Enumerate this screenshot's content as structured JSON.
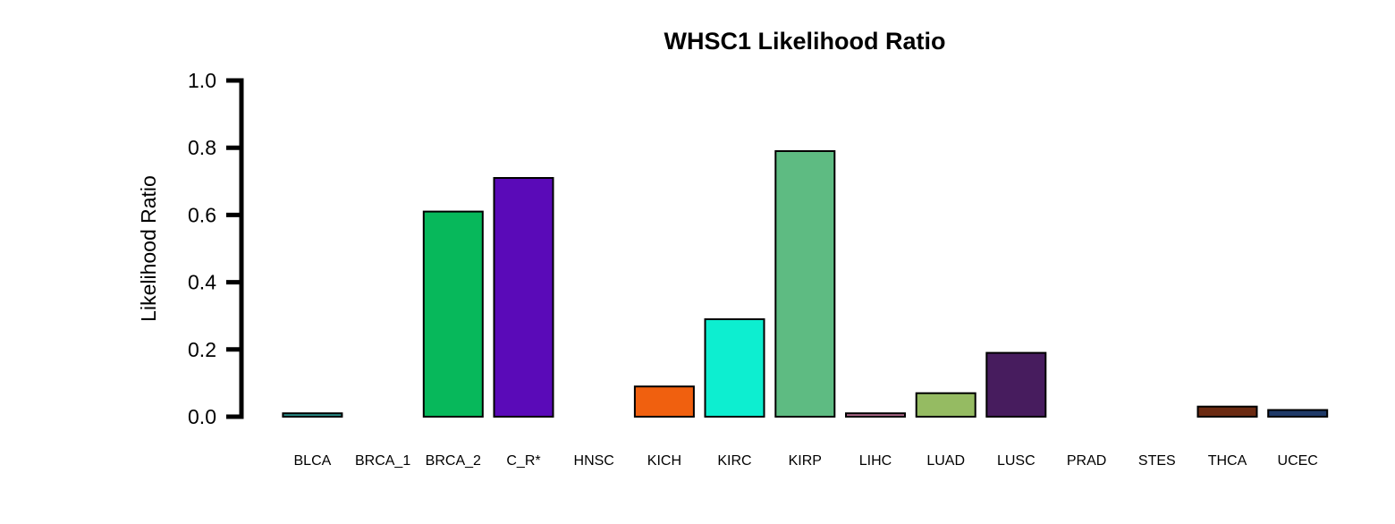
{
  "chart_data": {
    "type": "bar",
    "title": "WHSC1 Likelihood Ratio",
    "xlabel": "",
    "ylabel": "Likelihood Ratio",
    "ylim": [
      0,
      1
    ],
    "yticks": [
      "0.0",
      "0.2",
      "0.4",
      "0.6",
      "0.8",
      "1.0"
    ],
    "grid": false,
    "categories": [
      "BLCA",
      "BRCA_1",
      "BRCA_2",
      "C_R*",
      "HNSC",
      "KICH",
      "KIRC",
      "KIRP",
      "LIHC",
      "LUAD",
      "LUSC",
      "PRAD",
      "STES",
      "THCA",
      "UCEC"
    ],
    "values": [
      0.01,
      0.0,
      0.61,
      0.71,
      0.0,
      0.09,
      0.29,
      0.79,
      0.01,
      0.07,
      0.19,
      0.0,
      0.0,
      0.03,
      0.02
    ],
    "colors": [
      "#2b8f8a",
      "#000000",
      "#07b85b",
      "#5a0ab8",
      "#000000",
      "#f0600f",
      "#0deed0",
      "#5ebb82",
      "#b06a8a",
      "#95bb62",
      "#471c5e",
      "#000000",
      "#000000",
      "#6b2a12",
      "#1f3a68"
    ]
  }
}
